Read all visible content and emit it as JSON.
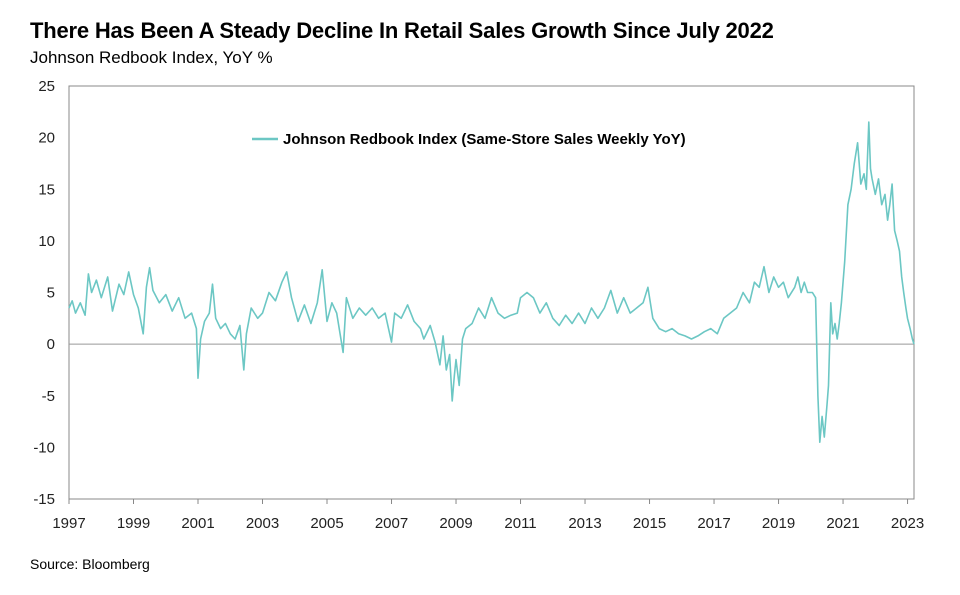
{
  "title": "There Has Been A Steady Decline In Retail Sales Growth Since July 2022",
  "subtitle": "Johnson Redbook Index, YoY %",
  "source": "Source: Bloomberg",
  "colors": {
    "series": "#6cc7c4",
    "axis": "#888888",
    "zero_line": "#999999"
  },
  "chart_data": {
    "type": "line",
    "title": "There Has Been A Steady Decline In Retail Sales Growth Since July 2022",
    "subtitle": "Johnson Redbook Index, YoY %",
    "xlabel": "",
    "ylabel": "",
    "xlim": [
      1997,
      2023.2
    ],
    "ylim": [
      -15,
      25
    ],
    "y_ticks": [
      -15,
      -10,
      -5,
      0,
      5,
      10,
      15,
      20,
      25
    ],
    "x_ticks": [
      1997,
      1999,
      2001,
      2003,
      2005,
      2007,
      2009,
      2011,
      2013,
      2015,
      2017,
      2019,
      2021,
      2023
    ],
    "x_tick_labels": [
      "1997",
      "1999",
      "2001",
      "2003",
      "2005",
      "2007",
      "2009",
      "2011",
      "2013",
      "2015",
      "2017",
      "2019",
      "2021",
      "2023"
    ],
    "grid": false,
    "legend": {
      "position": "top-center",
      "entries": [
        "Johnson Redbook Index (Same-Store Sales Weekly YoY)"
      ]
    },
    "series": [
      {
        "name": "Johnson Redbook Index (Same-Store Sales Weekly YoY)",
        "points": [
          [
            1997.0,
            3.5
          ],
          [
            1997.1,
            4.2
          ],
          [
            1997.2,
            3.0
          ],
          [
            1997.35,
            4.0
          ],
          [
            1997.5,
            2.8
          ],
          [
            1997.6,
            6.8
          ],
          [
            1997.7,
            5.0
          ],
          [
            1997.85,
            6.2
          ],
          [
            1998.0,
            4.5
          ],
          [
            1998.2,
            6.5
          ],
          [
            1998.35,
            3.2
          ],
          [
            1998.55,
            5.8
          ],
          [
            1998.7,
            4.8
          ],
          [
            1998.85,
            7.0
          ],
          [
            1999.0,
            4.8
          ],
          [
            1999.15,
            3.5
          ],
          [
            1999.3,
            1.0
          ],
          [
            1999.4,
            5.5
          ],
          [
            1999.5,
            7.4
          ],
          [
            1999.6,
            5.2
          ],
          [
            1999.8,
            4.0
          ],
          [
            2000.0,
            4.8
          ],
          [
            2000.2,
            3.2
          ],
          [
            2000.4,
            4.5
          ],
          [
            2000.6,
            2.5
          ],
          [
            2000.8,
            3.0
          ],
          [
            2000.95,
            1.5
          ],
          [
            2001.0,
            -3.3
          ],
          [
            2001.08,
            0.5
          ],
          [
            2001.2,
            2.2
          ],
          [
            2001.35,
            3.0
          ],
          [
            2001.45,
            5.8
          ],
          [
            2001.55,
            2.5
          ],
          [
            2001.7,
            1.5
          ],
          [
            2001.85,
            2.0
          ],
          [
            2002.0,
            1.0
          ],
          [
            2002.15,
            0.5
          ],
          [
            2002.3,
            1.8
          ],
          [
            2002.42,
            -2.5
          ],
          [
            2002.5,
            1.0
          ],
          [
            2002.65,
            3.5
          ],
          [
            2002.85,
            2.5
          ],
          [
            2003.0,
            3.0
          ],
          [
            2003.2,
            5.0
          ],
          [
            2003.4,
            4.2
          ],
          [
            2003.6,
            6.0
          ],
          [
            2003.75,
            7.0
          ],
          [
            2003.9,
            4.5
          ],
          [
            2004.1,
            2.2
          ],
          [
            2004.3,
            3.8
          ],
          [
            2004.5,
            2.0
          ],
          [
            2004.7,
            4.0
          ],
          [
            2004.85,
            7.2
          ],
          [
            2005.0,
            2.2
          ],
          [
            2005.15,
            4.0
          ],
          [
            2005.3,
            3.0
          ],
          [
            2005.5,
            -0.8
          ],
          [
            2005.6,
            4.5
          ],
          [
            2005.8,
            2.5
          ],
          [
            2006.0,
            3.5
          ],
          [
            2006.2,
            2.8
          ],
          [
            2006.4,
            3.5
          ],
          [
            2006.6,
            2.5
          ],
          [
            2006.8,
            3.0
          ],
          [
            2007.0,
            0.2
          ],
          [
            2007.1,
            3.0
          ],
          [
            2007.3,
            2.5
          ],
          [
            2007.5,
            3.8
          ],
          [
            2007.7,
            2.2
          ],
          [
            2007.9,
            1.5
          ],
          [
            2008.0,
            0.5
          ],
          [
            2008.2,
            1.8
          ],
          [
            2008.35,
            0.2
          ],
          [
            2008.5,
            -2.0
          ],
          [
            2008.6,
            0.8
          ],
          [
            2008.7,
            -2.5
          ],
          [
            2008.8,
            -1.0
          ],
          [
            2008.88,
            -5.5
          ],
          [
            2008.95,
            -3.0
          ],
          [
            2009.0,
            -1.5
          ],
          [
            2009.1,
            -4.0
          ],
          [
            2009.2,
            0.5
          ],
          [
            2009.3,
            1.5
          ],
          [
            2009.5,
            2.0
          ],
          [
            2009.7,
            3.5
          ],
          [
            2009.9,
            2.5
          ],
          [
            2010.1,
            4.5
          ],
          [
            2010.3,
            3.0
          ],
          [
            2010.5,
            2.5
          ],
          [
            2010.7,
            2.8
          ],
          [
            2010.9,
            3.0
          ],
          [
            2011.0,
            4.5
          ],
          [
            2011.2,
            5.0
          ],
          [
            2011.4,
            4.5
          ],
          [
            2011.6,
            3.0
          ],
          [
            2011.8,
            4.0
          ],
          [
            2012.0,
            2.5
          ],
          [
            2012.2,
            1.8
          ],
          [
            2012.4,
            2.8
          ],
          [
            2012.6,
            2.0
          ],
          [
            2012.8,
            3.0
          ],
          [
            2013.0,
            2.0
          ],
          [
            2013.2,
            3.5
          ],
          [
            2013.4,
            2.5
          ],
          [
            2013.6,
            3.5
          ],
          [
            2013.8,
            5.2
          ],
          [
            2014.0,
            3.0
          ],
          [
            2014.2,
            4.5
          ],
          [
            2014.4,
            3.0
          ],
          [
            2014.6,
            3.5
          ],
          [
            2014.8,
            4.0
          ],
          [
            2014.95,
            5.5
          ],
          [
            2015.1,
            2.5
          ],
          [
            2015.3,
            1.5
          ],
          [
            2015.5,
            1.2
          ],
          [
            2015.7,
            1.5
          ],
          [
            2015.9,
            1.0
          ],
          [
            2016.1,
            0.8
          ],
          [
            2016.3,
            0.5
          ],
          [
            2016.5,
            0.8
          ],
          [
            2016.7,
            1.2
          ],
          [
            2016.9,
            1.5
          ],
          [
            2017.1,
            1.0
          ],
          [
            2017.3,
            2.5
          ],
          [
            2017.5,
            3.0
          ],
          [
            2017.7,
            3.5
          ],
          [
            2017.9,
            5.0
          ],
          [
            2018.1,
            4.0
          ],
          [
            2018.25,
            6.0
          ],
          [
            2018.4,
            5.5
          ],
          [
            2018.55,
            7.5
          ],
          [
            2018.7,
            5.0
          ],
          [
            2018.85,
            6.5
          ],
          [
            2019.0,
            5.5
          ],
          [
            2019.15,
            6.0
          ],
          [
            2019.3,
            4.5
          ],
          [
            2019.5,
            5.5
          ],
          [
            2019.6,
            6.5
          ],
          [
            2019.7,
            5.0
          ],
          [
            2019.8,
            6.0
          ],
          [
            2019.9,
            5.0
          ],
          [
            2020.05,
            5.0
          ],
          [
            2020.15,
            4.5
          ],
          [
            2020.22,
            -5.0
          ],
          [
            2020.28,
            -9.5
          ],
          [
            2020.35,
            -7.0
          ],
          [
            2020.42,
            -9.0
          ],
          [
            2020.5,
            -6.0
          ],
          [
            2020.55,
            -4.0
          ],
          [
            2020.62,
            4.0
          ],
          [
            2020.68,
            1.0
          ],
          [
            2020.75,
            2.0
          ],
          [
            2020.82,
            0.5
          ],
          [
            2020.88,
            2.0
          ],
          [
            2020.95,
            4.0
          ],
          [
            2021.05,
            8.0
          ],
          [
            2021.15,
            13.5
          ],
          [
            2021.25,
            15.0
          ],
          [
            2021.35,
            17.5
          ],
          [
            2021.45,
            19.5
          ],
          [
            2021.55,
            15.5
          ],
          [
            2021.65,
            16.5
          ],
          [
            2021.72,
            15.0
          ],
          [
            2021.8,
            21.5
          ],
          [
            2021.85,
            17.0
          ],
          [
            2021.9,
            16.0
          ],
          [
            2022.0,
            14.5
          ],
          [
            2022.1,
            16.0
          ],
          [
            2022.2,
            13.5
          ],
          [
            2022.3,
            14.5
          ],
          [
            2022.38,
            12.0
          ],
          [
            2022.45,
            13.5
          ],
          [
            2022.52,
            15.5
          ],
          [
            2022.6,
            11.0
          ],
          [
            2022.68,
            10.0
          ],
          [
            2022.75,
            9.0
          ],
          [
            2022.82,
            6.5
          ],
          [
            2022.88,
            5.0
          ],
          [
            2022.95,
            3.5
          ],
          [
            2023.0,
            2.5
          ],
          [
            2023.08,
            1.5
          ],
          [
            2023.15,
            0.5
          ],
          [
            2023.2,
            0.0
          ]
        ]
      }
    ]
  }
}
